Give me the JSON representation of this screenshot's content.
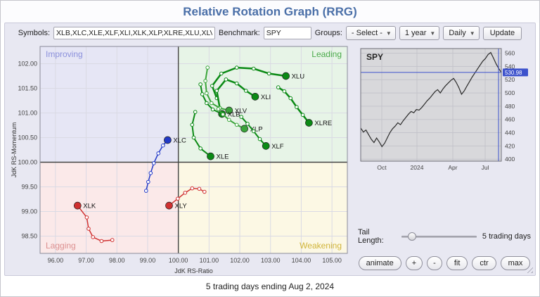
{
  "header": {
    "title": "Relative Rotation Graph (RRG)"
  },
  "toolbar": {
    "symbols_label": "Symbols:",
    "symbols_value": "XLB,XLC,XLE,XLF,XLI,XLK,XLP,XLRE,XLU,XLV,XL",
    "benchmark_label": "Benchmark:",
    "benchmark_value": "SPY",
    "groups_label": "Groups:",
    "groups_value": "- Select -",
    "period_value": "1 year",
    "frequency_value": "Daily",
    "update_label": "Update"
  },
  "controls": {
    "tail_label": "Tail Length:",
    "tail_value_text": "5 trading days",
    "buttons": [
      "animate",
      "+",
      "-",
      "fit",
      "ctr",
      "max"
    ]
  },
  "footer": {
    "text": "5 trading days ending Aug 2, 2024"
  },
  "chart_data": [
    {
      "type": "scatter",
      "title": "Relative Rotation Graph",
      "xlabel": "JdK RS-Ratio",
      "ylabel": "JdK RS-Momentum",
      "xlim": [
        95.5,
        105.5
      ],
      "ylim": [
        98.15,
        102.35
      ],
      "xticks": [
        96,
        97,
        98,
        99,
        100,
        101,
        102,
        103,
        104,
        105
      ],
      "yticks": [
        98.5,
        99.0,
        99.5,
        100.0,
        100.5,
        101.0,
        101.5,
        102.0
      ],
      "center": [
        100,
        100
      ],
      "quadrants": {
        "top_left": {
          "label": "Improving",
          "color": "#8b90dc",
          "bg": "#e6e6f5"
        },
        "top_right": {
          "label": "Leading",
          "color": "#4aaa4a",
          "bg": "#e7f4e7"
        },
        "bottom_left": {
          "label": "Lagging",
          "color": "#dc9090",
          "bg": "#fbe9e9"
        },
        "bottom_right": {
          "label": "Weakening",
          "color": "#d0b43a",
          "bg": "#fcf8e4"
        }
      },
      "series": [
        {
          "name": "XLU",
          "color": "#0b8a15",
          "width": 2.5,
          "points": [
            [
              101.25,
              101.3
            ],
            [
              101.1,
              101.55
            ],
            [
              101.4,
              101.8
            ],
            [
              101.9,
              101.92
            ],
            [
              102.45,
              101.9
            ],
            [
              102.95,
              101.8
            ],
            [
              103.5,
              101.75
            ]
          ]
        },
        {
          "name": "XLI",
          "color": "#0b8a15",
          "width": 2.5,
          "points": [
            [
              101.35,
              101.1
            ],
            [
              101.25,
              101.45
            ],
            [
              101.55,
              101.68
            ],
            [
              101.9,
              101.6
            ],
            [
              102.2,
              101.45
            ],
            [
              102.5,
              101.33
            ]
          ]
        },
        {
          "name": "XLV",
          "color": "#3aa43a",
          "width": 2,
          "points": [
            [
              100.95,
              101.92
            ],
            [
              100.88,
              101.65
            ],
            [
              100.92,
              101.4
            ],
            [
              101.08,
              101.2
            ],
            [
              101.35,
              101.1
            ],
            [
              101.65,
              101.05
            ]
          ]
        },
        {
          "name": "XLB",
          "color": "#0b8a15",
          "width": 2,
          "points": [
            [
              100.72,
              101.58
            ],
            [
              100.78,
              101.38
            ],
            [
              100.92,
              101.2
            ],
            [
              101.12,
              101.07
            ],
            [
              101.42,
              100.98
            ]
          ]
        },
        {
          "name": "XLP",
          "color": "#3aa43a",
          "width": 2,
          "points": [
            [
              101.3,
              101.08
            ],
            [
              101.45,
              100.97
            ],
            [
              101.65,
              100.86
            ],
            [
              101.9,
              100.76
            ],
            [
              102.15,
              100.68
            ]
          ]
        },
        {
          "name": "XLRE",
          "color": "#0b8a15",
          "width": 2.5,
          "points": [
            [
              103.25,
              101.52
            ],
            [
              103.45,
              101.44
            ],
            [
              103.65,
              101.3
            ],
            [
              103.85,
              101.12
            ],
            [
              104.05,
              100.96
            ],
            [
              104.25,
              100.8
            ]
          ]
        },
        {
          "name": "XLF",
          "color": "#0b8a15",
          "width": 2,
          "points": [
            [
              102.05,
              100.92
            ],
            [
              102.25,
              100.78
            ],
            [
              102.45,
              100.63
            ],
            [
              102.65,
              100.47
            ],
            [
              102.85,
              100.33
            ]
          ]
        },
        {
          "name": "XLE",
          "color": "#0b8a15",
          "width": 2,
          "points": [
            [
              100.55,
              101.02
            ],
            [
              100.45,
              100.76
            ],
            [
              100.5,
              100.5
            ],
            [
              100.72,
              100.28
            ],
            [
              101.05,
              100.12
            ]
          ]
        },
        {
          "name": "XLC",
          "color": "#2239c8",
          "width": 1.5,
          "points": [
            [
              98.95,
              99.42
            ],
            [
              99.02,
              99.6
            ],
            [
              99.1,
              99.78
            ],
            [
              99.2,
              99.98
            ],
            [
              99.35,
              100.18
            ],
            [
              99.5,
              100.34
            ],
            [
              99.65,
              100.45
            ]
          ]
        },
        {
          "name": "XLY",
          "color": "#d03030",
          "width": 1.5,
          "points": [
            [
              100.85,
              99.4
            ],
            [
              100.68,
              99.46
            ],
            [
              100.45,
              99.47
            ],
            [
              100.22,
              99.38
            ],
            [
              99.98,
              99.26
            ],
            [
              99.7,
              99.12
            ]
          ]
        },
        {
          "name": "XLK",
          "color": "#d03030",
          "width": 1.5,
          "points": [
            [
              97.85,
              98.42
            ],
            [
              97.5,
              98.4
            ],
            [
              97.22,
              98.48
            ],
            [
              97.08,
              98.65
            ],
            [
              97.02,
              98.88
            ],
            [
              96.72,
              99.12
            ]
          ]
        }
      ]
    },
    {
      "type": "line",
      "title": "SPY",
      "yticks": [
        400,
        420,
        440,
        460,
        480,
        500,
        520,
        540,
        560
      ],
      "ylim": [
        397,
        567
      ],
      "x_labels": [
        {
          "label": "Oct",
          "pos": 0.15
        },
        {
          "label": "2024",
          "pos": 0.4
        },
        {
          "label": "Apr",
          "pos": 0.655
        },
        {
          "label": "Jul",
          "pos": 0.885
        }
      ],
      "last_price": 530.98,
      "accent_color": "#3d52cc",
      "values": [
        447,
        441,
        444,
        437,
        430,
        425,
        432,
        426,
        419,
        424,
        432,
        440,
        446,
        450,
        455,
        452,
        458,
        463,
        468,
        472,
        470,
        475,
        474,
        478,
        483,
        488,
        492,
        497,
        502,
        505,
        500,
        506,
        511,
        515,
        519,
        522,
        516,
        508,
        498,
        503,
        510,
        517,
        524,
        530,
        536,
        542,
        548,
        552,
        558,
        561,
        553,
        544,
        537,
        531
      ]
    }
  ]
}
